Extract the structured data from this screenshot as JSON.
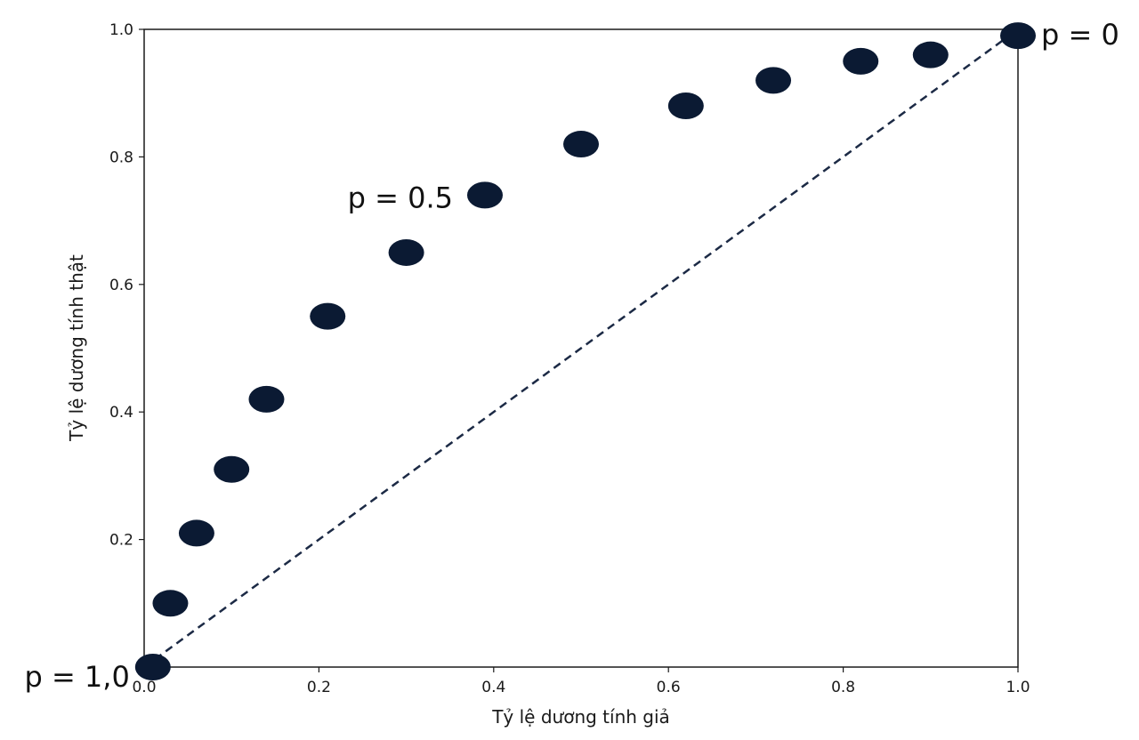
{
  "chart_data": {
    "type": "scatter",
    "title": "",
    "xlabel": "Tỷ lệ dương tính giả",
    "ylabel": "Tỷ lệ dương tính thật",
    "xlim": [
      0,
      1
    ],
    "ylim": [
      0,
      1
    ],
    "xticks": [
      "0.0",
      "0.2",
      "0.4",
      "0.6",
      "0.8",
      "1.0"
    ],
    "yticks": [
      "0.2",
      "0.4",
      "0.6",
      "0.8",
      "1.0"
    ],
    "grid": false,
    "point_color": "#0b1a33",
    "reference_line": {
      "style": "dashed",
      "from": [
        0,
        0
      ],
      "to": [
        1,
        1
      ],
      "color": "#1c2a45"
    },
    "points": [
      {
        "x": 0.01,
        "y": 0.0
      },
      {
        "x": 0.03,
        "y": 0.1
      },
      {
        "x": 0.06,
        "y": 0.21
      },
      {
        "x": 0.1,
        "y": 0.31
      },
      {
        "x": 0.14,
        "y": 0.42
      },
      {
        "x": 0.21,
        "y": 0.55
      },
      {
        "x": 0.3,
        "y": 0.65
      },
      {
        "x": 0.39,
        "y": 0.74
      },
      {
        "x": 0.5,
        "y": 0.82
      },
      {
        "x": 0.62,
        "y": 0.88
      },
      {
        "x": 0.72,
        "y": 0.92
      },
      {
        "x": 0.82,
        "y": 0.95
      },
      {
        "x": 0.9,
        "y": 0.96
      },
      {
        "x": 1.0,
        "y": 0.99
      }
    ],
    "annotations": [
      {
        "text": "p = 1,0",
        "point_index": 0
      },
      {
        "text": "p = 0.5",
        "point_index": 7
      },
      {
        "text": "p = 0",
        "point_index": 13
      }
    ]
  }
}
